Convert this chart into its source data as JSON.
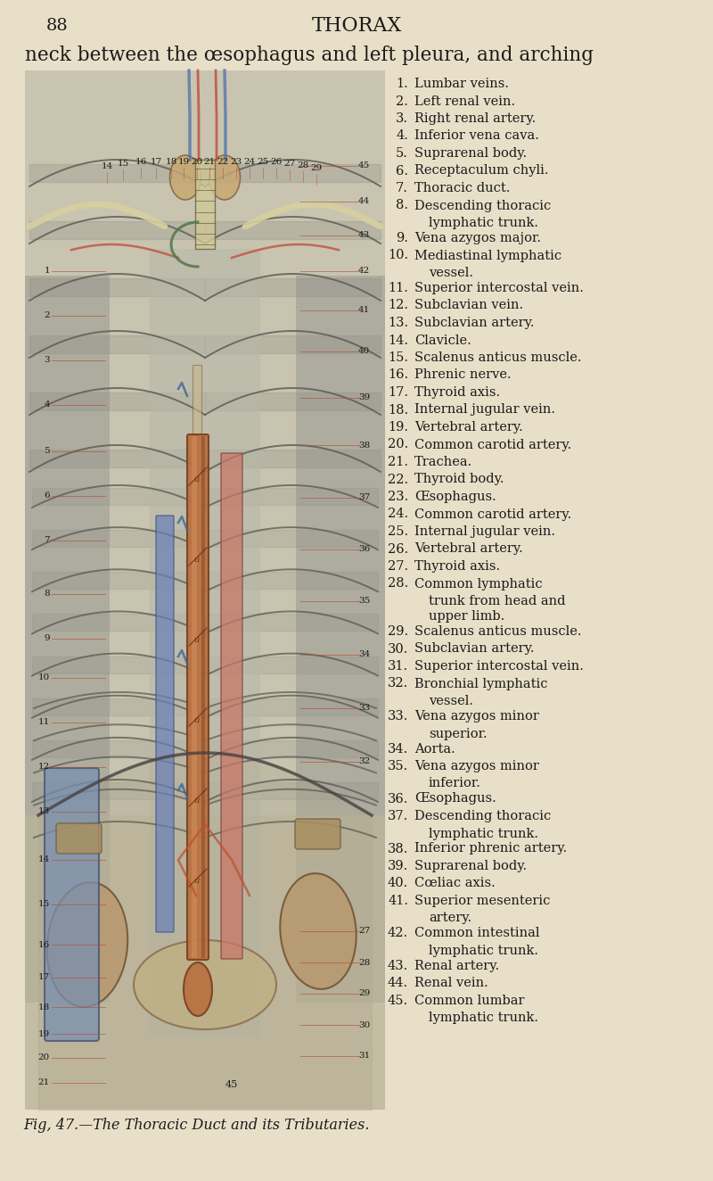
{
  "bg_color": "#e8dfc8",
  "page_number": "88",
  "page_title": "THORAX",
  "header_text": "neck between the œsophagus and left pleura, and arching",
  "figure_caption": "Fig, 47.—The Thoracic Duct and its Tributaries.",
  "legend_items": [
    [
      "1.",
      "Lumbar veins."
    ],
    [
      "2.",
      "Left renal vein."
    ],
    [
      "3.",
      "Right renal artery."
    ],
    [
      "4.",
      "Inferior vena cava."
    ],
    [
      "5.",
      "Suprarenal body."
    ],
    [
      "6.",
      "Receptaculum chyli."
    ],
    [
      "7.",
      "Thoracic duct."
    ],
    [
      "8.",
      "Descending thoracic",
      "lymphatic trunk."
    ],
    [
      "9.",
      "Vena azygos major."
    ],
    [
      "10.",
      "Mediastinal lymphatic",
      "vessel."
    ],
    [
      "11.",
      "Superior intercostal vein."
    ],
    [
      "12.",
      "Subclavian vein."
    ],
    [
      "13.",
      "Subclavian artery."
    ],
    [
      "14.",
      "Clavicle."
    ],
    [
      "15.",
      "Scalenus anticus muscle."
    ],
    [
      "16.",
      "Phrenic nerve."
    ],
    [
      "17.",
      "Thyroid axis."
    ],
    [
      "18.",
      "Internal jugular vein."
    ],
    [
      "19.",
      "Vertebral artery."
    ],
    [
      "20.",
      "Common carotid artery."
    ],
    [
      "21.",
      "Trachea."
    ],
    [
      "22.",
      "Thyroid body."
    ],
    [
      "23.",
      "Œsophagus."
    ],
    [
      "24.",
      "Common carotid artery."
    ],
    [
      "25.",
      "Internal jugular vein."
    ],
    [
      "26.",
      "Vertebral artery."
    ],
    [
      "27.",
      "Thyroid axis."
    ],
    [
      "28.",
      "Common lymphatic",
      "trunk from head and",
      "upper limb."
    ],
    [
      "29.",
      "Scalenus anticus muscle."
    ],
    [
      "30.",
      "Subclavian artery."
    ],
    [
      "31.",
      "Superior intercostal vein."
    ],
    [
      "32.",
      "Bronchial lymphatic",
      "vessel."
    ],
    [
      "33.",
      "Vena azygos minor",
      "superior."
    ],
    [
      "34.",
      "Aorta."
    ],
    [
      "35.",
      "Vena azygos minor",
      "inferior."
    ],
    [
      "36.",
      "Œsophagus."
    ],
    [
      "37.",
      "Descending thoracic",
      "lymphatic trunk."
    ],
    [
      "38.",
      "Inferior phrenic artery."
    ],
    [
      "39.",
      "Suprarenal body."
    ],
    [
      "40.",
      "Cœliac axis."
    ],
    [
      "41.",
      "Superior mesenteric",
      "artery."
    ],
    [
      "42.",
      "Common intestinal",
      "lymphatic trunk."
    ],
    [
      "43.",
      "Renal artery."
    ],
    [
      "44.",
      "Renal vein."
    ],
    [
      "45.",
      "Common lumbar",
      "lymphatic trunk."
    ]
  ],
  "ill_left_nums": [
    [
      36,
      940,
      "1"
    ],
    [
      36,
      890,
      "2"
    ],
    [
      36,
      840,
      "3"
    ],
    [
      36,
      790,
      "4"
    ],
    [
      36,
      738,
      "5"
    ],
    [
      36,
      688,
      "6"
    ],
    [
      36,
      638,
      "7"
    ],
    [
      36,
      578,
      "8"
    ],
    [
      36,
      528,
      "9"
    ],
    [
      36,
      484,
      "10"
    ],
    [
      36,
      434,
      "11"
    ],
    [
      36,
      384,
      "12"
    ],
    [
      36,
      334,
      "13"
    ],
    [
      36,
      280,
      "14"
    ],
    [
      36,
      230,
      "15"
    ],
    [
      36,
      185,
      "16"
    ],
    [
      36,
      148,
      "17"
    ],
    [
      36,
      115,
      "18"
    ],
    [
      36,
      85,
      "19"
    ],
    [
      36,
      58,
      "20"
    ],
    [
      36,
      30,
      "21"
    ]
  ],
  "ill_right_nums": [
    [
      405,
      200,
      "27"
    ],
    [
      405,
      165,
      "28"
    ],
    [
      405,
      130,
      "29"
    ],
    [
      405,
      95,
      "30"
    ],
    [
      405,
      60,
      "31"
    ],
    [
      405,
      390,
      "32"
    ],
    [
      405,
      450,
      "33"
    ],
    [
      405,
      510,
      "34"
    ],
    [
      405,
      570,
      "35"
    ],
    [
      405,
      628,
      "36"
    ],
    [
      405,
      686,
      "37"
    ],
    [
      405,
      745,
      "38"
    ],
    [
      405,
      798,
      "39"
    ],
    [
      405,
      850,
      "40"
    ],
    [
      405,
      896,
      "41"
    ],
    [
      405,
      940,
      "42"
    ],
    [
      405,
      980,
      "43"
    ],
    [
      405,
      1018,
      "44"
    ],
    [
      405,
      1058,
      "45"
    ]
  ],
  "ill_top_nums": [
    [
      120,
      1128,
      "14"
    ],
    [
      138,
      1130,
      "15"
    ],
    [
      158,
      1132,
      "16"
    ],
    [
      175,
      1132,
      "17"
    ],
    [
      192,
      1132,
      "18"
    ],
    [
      207,
      1132,
      "19"
    ],
    [
      222,
      1132,
      "20"
    ],
    [
      237,
      1132,
      "21"
    ],
    [
      253,
      1132,
      "22"
    ],
    [
      268,
      1132,
      "23"
    ],
    [
      283,
      1132,
      "24"
    ],
    [
      298,
      1132,
      "25"
    ],
    [
      313,
      1132,
      "26"
    ],
    [
      328,
      1130,
      "27"
    ],
    [
      343,
      1128,
      "28"
    ],
    [
      357,
      1125,
      "29"
    ]
  ]
}
